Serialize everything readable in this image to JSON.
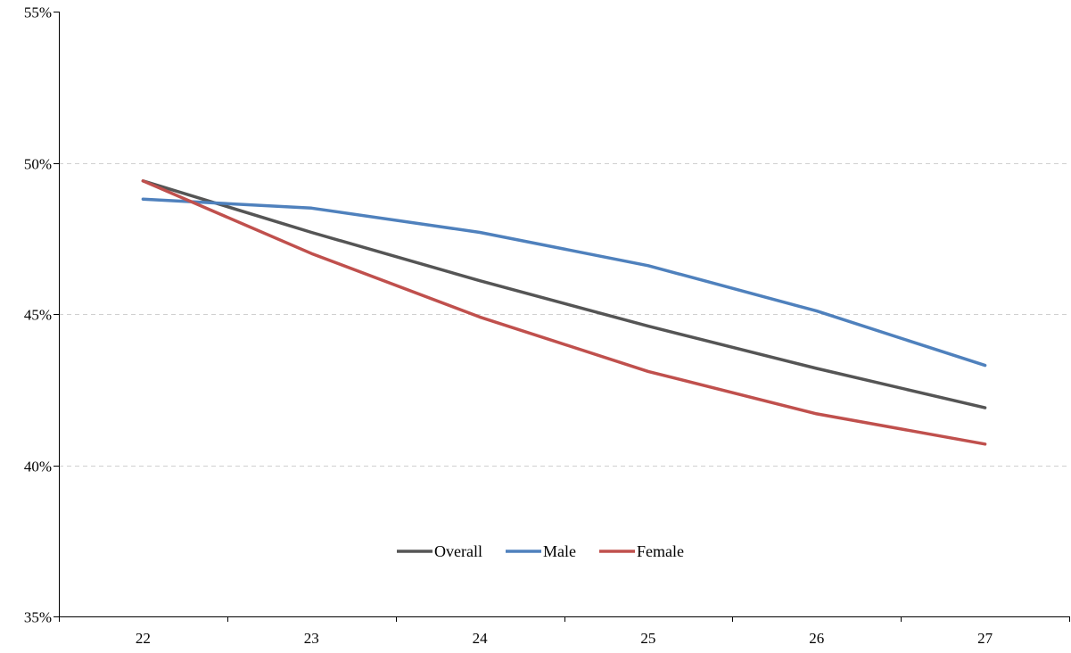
{
  "chart_data": {
    "type": "line",
    "title": "",
    "xlabel": "",
    "ylabel": "",
    "x": [
      22,
      23,
      24,
      25,
      26,
      27
    ],
    "x_tick_labels": [
      "22",
      "23",
      "24",
      "25",
      "26",
      "27"
    ],
    "ylim": [
      35,
      55
    ],
    "y_ticks": [
      35,
      40,
      45,
      50,
      55
    ],
    "y_tick_labels": [
      "35%",
      "40%",
      "45%",
      "50%",
      "55%"
    ],
    "y_unit": "%",
    "grid": "horizontal-dashed",
    "legend_position": "bottom-center",
    "series": [
      {
        "name": "Overall",
        "color": "#555555",
        "values": [
          49.4,
          47.7,
          46.1,
          44.6,
          43.2,
          41.9
        ]
      },
      {
        "name": "Male",
        "color": "#4f81bd",
        "values": [
          48.8,
          48.5,
          47.7,
          46.6,
          45.1,
          43.3
        ]
      },
      {
        "name": "Female",
        "color": "#c0504d",
        "values": [
          49.4,
          47.0,
          44.9,
          43.1,
          41.7,
          40.7
        ]
      }
    ]
  }
}
